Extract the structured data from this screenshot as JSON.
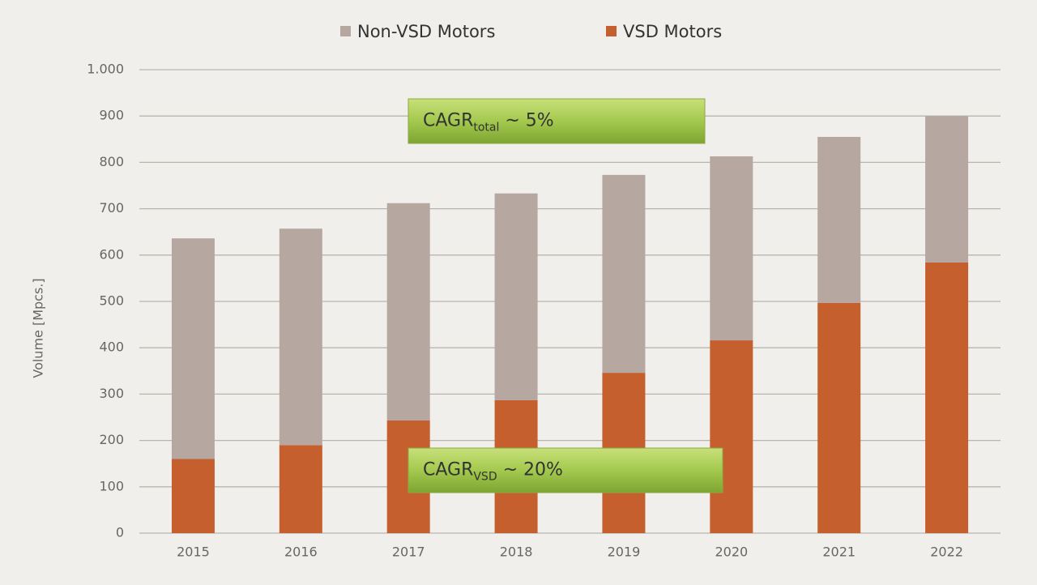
{
  "chart_data": {
    "type": "stacked_bar",
    "categories": [
      "2015",
      "2016",
      "2017",
      "2018",
      "2019",
      "2020",
      "2021",
      "2022"
    ],
    "series": [
      {
        "name": "Non-VSD Motors",
        "color": "#b6a7a1",
        "values": [
          476,
          467,
          469,
          446,
          427,
          397,
          358,
          316
        ]
      },
      {
        "name": "VSD Motors",
        "color": "#c65f2e",
        "values": [
          160,
          190,
          243,
          287,
          346,
          416,
          497,
          584
        ]
      }
    ],
    "ylabel": "Volume [Mpcs.]",
    "ylim": [
      0,
      1000
    ],
    "yticks": [
      0,
      100,
      200,
      300,
      400,
      500,
      600,
      700,
      800,
      900,
      {
        "value": 1000,
        "label": "1.000"
      }
    ],
    "grid": true,
    "legend": "top",
    "annotations": [
      {
        "text": "CAGR",
        "sub": "total",
        "suffix": " ~ 5%"
      },
      {
        "text": "CAGR",
        "sub": "VSD",
        "suffix": " ~ 20%"
      }
    ]
  }
}
